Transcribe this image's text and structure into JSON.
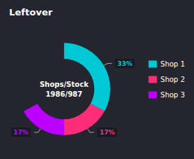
{
  "chart_data": {
    "type": "pie",
    "title": "Leftover",
    "categories": [
      "Shop 1",
      "Shop 2",
      "Shop 3",
      null
    ],
    "values": [
      33,
      17,
      17,
      33
    ],
    "value_labels": [
      "33%",
      "17%",
      "17%",
      null
    ],
    "colors": [
      "#00C8D4",
      "#FF2D78",
      "#BB00FF",
      "#252530"
    ],
    "annotations": [
      "Shops/Stock",
      "1986/987"
    ],
    "data_labels": true,
    "legend": "right"
  }
}
